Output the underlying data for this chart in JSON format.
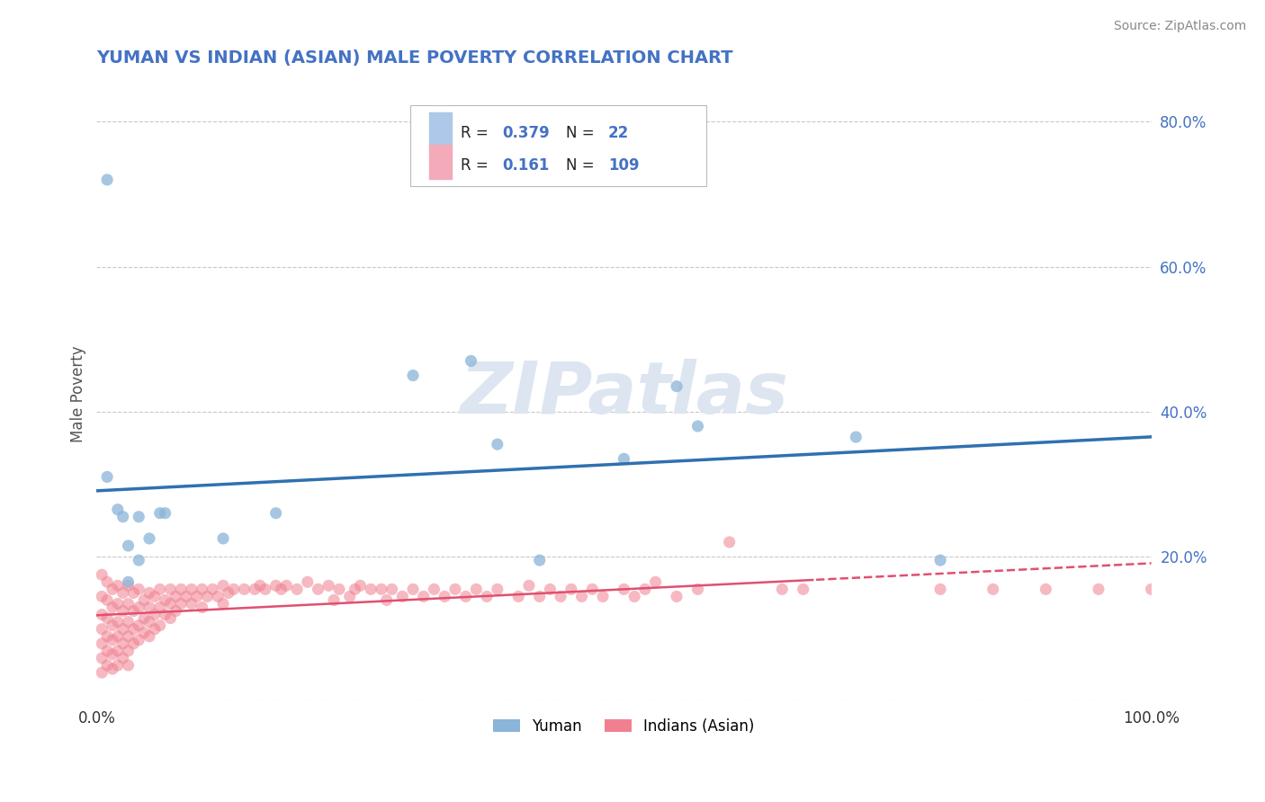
{
  "title": "YUMAN VS INDIAN (ASIAN) MALE POVERTY CORRELATION CHART",
  "source": "Source: ZipAtlas.com",
  "ylabel": "Male Poverty",
  "xlim": [
    0,
    1
  ],
  "ylim": [
    0,
    0.85
  ],
  "yticks": [
    0.0,
    0.2,
    0.4,
    0.6,
    0.8
  ],
  "ytick_labels": [
    "",
    "20.0%",
    "40.0%",
    "60.0%",
    "80.0%"
  ],
  "xticks": [
    0.0,
    1.0
  ],
  "xtick_labels": [
    "0.0%",
    "100.0%"
  ],
  "yuman_color": "#8ab4d8",
  "indian_color": "#f08090",
  "yuman_scatter": [
    [
      0.01,
      0.72
    ],
    [
      0.01,
      0.31
    ],
    [
      0.02,
      0.265
    ],
    [
      0.025,
      0.255
    ],
    [
      0.03,
      0.215
    ],
    [
      0.03,
      0.165
    ],
    [
      0.04,
      0.195
    ],
    [
      0.04,
      0.255
    ],
    [
      0.05,
      0.225
    ],
    [
      0.06,
      0.26
    ],
    [
      0.065,
      0.26
    ],
    [
      0.12,
      0.225
    ],
    [
      0.17,
      0.26
    ],
    [
      0.3,
      0.45
    ],
    [
      0.355,
      0.47
    ],
    [
      0.38,
      0.355
    ],
    [
      0.42,
      0.195
    ],
    [
      0.5,
      0.335
    ],
    [
      0.55,
      0.435
    ],
    [
      0.57,
      0.38
    ],
    [
      0.72,
      0.365
    ],
    [
      0.8,
      0.195
    ]
  ],
  "indian_scatter": [
    [
      0.005,
      0.175
    ],
    [
      0.005,
      0.145
    ],
    [
      0.005,
      0.12
    ],
    [
      0.005,
      0.1
    ],
    [
      0.005,
      0.08
    ],
    [
      0.005,
      0.06
    ],
    [
      0.005,
      0.04
    ],
    [
      0.01,
      0.165
    ],
    [
      0.01,
      0.14
    ],
    [
      0.01,
      0.115
    ],
    [
      0.01,
      0.09
    ],
    [
      0.01,
      0.07
    ],
    [
      0.01,
      0.05
    ],
    [
      0.015,
      0.155
    ],
    [
      0.015,
      0.13
    ],
    [
      0.015,
      0.105
    ],
    [
      0.015,
      0.085
    ],
    [
      0.015,
      0.065
    ],
    [
      0.015,
      0.045
    ],
    [
      0.02,
      0.16
    ],
    [
      0.02,
      0.135
    ],
    [
      0.02,
      0.11
    ],
    [
      0.02,
      0.09
    ],
    [
      0.02,
      0.07
    ],
    [
      0.02,
      0.05
    ],
    [
      0.025,
      0.15
    ],
    [
      0.025,
      0.125
    ],
    [
      0.025,
      0.1
    ],
    [
      0.025,
      0.08
    ],
    [
      0.025,
      0.06
    ],
    [
      0.03,
      0.16
    ],
    [
      0.03,
      0.135
    ],
    [
      0.03,
      0.11
    ],
    [
      0.03,
      0.09
    ],
    [
      0.03,
      0.07
    ],
    [
      0.03,
      0.05
    ],
    [
      0.035,
      0.15
    ],
    [
      0.035,
      0.125
    ],
    [
      0.035,
      0.1
    ],
    [
      0.035,
      0.08
    ],
    [
      0.04,
      0.155
    ],
    [
      0.04,
      0.13
    ],
    [
      0.04,
      0.105
    ],
    [
      0.04,
      0.085
    ],
    [
      0.045,
      0.14
    ],
    [
      0.045,
      0.115
    ],
    [
      0.045,
      0.095
    ],
    [
      0.05,
      0.15
    ],
    [
      0.05,
      0.13
    ],
    [
      0.05,
      0.11
    ],
    [
      0.05,
      0.09
    ],
    [
      0.055,
      0.145
    ],
    [
      0.055,
      0.12
    ],
    [
      0.055,
      0.1
    ],
    [
      0.06,
      0.155
    ],
    [
      0.06,
      0.13
    ],
    [
      0.06,
      0.105
    ],
    [
      0.065,
      0.14
    ],
    [
      0.065,
      0.12
    ],
    [
      0.07,
      0.155
    ],
    [
      0.07,
      0.135
    ],
    [
      0.07,
      0.115
    ],
    [
      0.075,
      0.145
    ],
    [
      0.075,
      0.125
    ],
    [
      0.08,
      0.155
    ],
    [
      0.08,
      0.135
    ],
    [
      0.085,
      0.145
    ],
    [
      0.09,
      0.155
    ],
    [
      0.09,
      0.135
    ],
    [
      0.095,
      0.145
    ],
    [
      0.1,
      0.155
    ],
    [
      0.1,
      0.13
    ],
    [
      0.105,
      0.145
    ],
    [
      0.11,
      0.155
    ],
    [
      0.115,
      0.145
    ],
    [
      0.12,
      0.16
    ],
    [
      0.12,
      0.135
    ],
    [
      0.125,
      0.15
    ],
    [
      0.13,
      0.155
    ],
    [
      0.14,
      0.155
    ],
    [
      0.15,
      0.155
    ],
    [
      0.155,
      0.16
    ],
    [
      0.16,
      0.155
    ],
    [
      0.17,
      0.16
    ],
    [
      0.175,
      0.155
    ],
    [
      0.18,
      0.16
    ],
    [
      0.19,
      0.155
    ],
    [
      0.2,
      0.165
    ],
    [
      0.21,
      0.155
    ],
    [
      0.22,
      0.16
    ],
    [
      0.225,
      0.14
    ],
    [
      0.23,
      0.155
    ],
    [
      0.24,
      0.145
    ],
    [
      0.245,
      0.155
    ],
    [
      0.25,
      0.16
    ],
    [
      0.26,
      0.155
    ],
    [
      0.27,
      0.155
    ],
    [
      0.275,
      0.14
    ],
    [
      0.28,
      0.155
    ],
    [
      0.29,
      0.145
    ],
    [
      0.3,
      0.155
    ],
    [
      0.31,
      0.145
    ],
    [
      0.32,
      0.155
    ],
    [
      0.33,
      0.145
    ],
    [
      0.34,
      0.155
    ],
    [
      0.35,
      0.145
    ],
    [
      0.36,
      0.155
    ],
    [
      0.37,
      0.145
    ],
    [
      0.38,
      0.155
    ],
    [
      0.4,
      0.145
    ],
    [
      0.41,
      0.16
    ],
    [
      0.42,
      0.145
    ],
    [
      0.43,
      0.155
    ],
    [
      0.44,
      0.145
    ],
    [
      0.45,
      0.155
    ],
    [
      0.46,
      0.145
    ],
    [
      0.47,
      0.155
    ],
    [
      0.48,
      0.145
    ],
    [
      0.5,
      0.155
    ],
    [
      0.51,
      0.145
    ],
    [
      0.52,
      0.155
    ],
    [
      0.53,
      0.165
    ],
    [
      0.55,
      0.145
    ],
    [
      0.57,
      0.155
    ],
    [
      0.6,
      0.22
    ],
    [
      0.65,
      0.155
    ],
    [
      0.67,
      0.155
    ],
    [
      0.8,
      0.155
    ],
    [
      0.85,
      0.155
    ],
    [
      0.9,
      0.155
    ],
    [
      0.95,
      0.155
    ],
    [
      1.0,
      0.155
    ]
  ],
  "yuman_line_color": "#3070b0",
  "indian_line_color": "#e05070",
  "legend_yuman_color": "#adc8e8",
  "legend_indian_color": "#f4aab8",
  "blue_text_color": "#4472c4",
  "background_color": "#ffffff",
  "grid_color": "#c8c8c8",
  "title_color": "#4472c4",
  "watermark_text": "ZIPatlas",
  "watermark_color": "#dde5f0"
}
